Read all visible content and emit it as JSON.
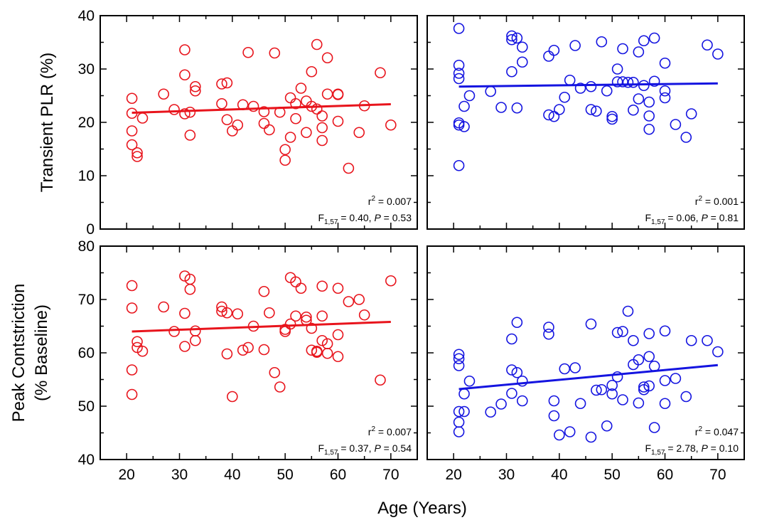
{
  "figure": {
    "xlabel": "Age (Years)",
    "ylabel_top": "Transient PLR (%)",
    "ylabel_bottom_line1": "Peak Contstriction",
    "ylabel_bottom_line2": "(% Baseline)"
  },
  "chart_data": [
    {
      "type": "scatter",
      "panel": "top-left",
      "color": "#e8141c",
      "xlim": [
        15,
        75
      ],
      "ylim": [
        0,
        40
      ],
      "xticks": [
        20,
        30,
        40,
        50,
        60,
        70
      ],
      "yticks": [
        0,
        10,
        20,
        30,
        40
      ],
      "points": [
        [
          21,
          24.5
        ],
        [
          21,
          21.7
        ],
        [
          21,
          18.4
        ],
        [
          21,
          15.8
        ],
        [
          22,
          14.3
        ],
        [
          22,
          13.6
        ],
        [
          23,
          20.8
        ],
        [
          27,
          25.3
        ],
        [
          29,
          22.4
        ],
        [
          31,
          33.6
        ],
        [
          31,
          28.9
        ],
        [
          31,
          21.6
        ],
        [
          32,
          21.9
        ],
        [
          32,
          17.6
        ],
        [
          33,
          25.9
        ],
        [
          33,
          26.7
        ],
        [
          38,
          27.2
        ],
        [
          38,
          23.5
        ],
        [
          39,
          27.4
        ],
        [
          39,
          20.5
        ],
        [
          40,
          18.4
        ],
        [
          41,
          19.5
        ],
        [
          42,
          23.3
        ],
        [
          43,
          33.1
        ],
        [
          44,
          23.0
        ],
        [
          46,
          22.0
        ],
        [
          46,
          19.8
        ],
        [
          47,
          18.6
        ],
        [
          48,
          33.0
        ],
        [
          49,
          21.9
        ],
        [
          50,
          14.9
        ],
        [
          50,
          12.9
        ],
        [
          51,
          24.6
        ],
        [
          51,
          17.2
        ],
        [
          52,
          23.5
        ],
        [
          52,
          20.7
        ],
        [
          53,
          26.4
        ],
        [
          54,
          24.0
        ],
        [
          54,
          18.1
        ],
        [
          55,
          29.5
        ],
        [
          55,
          23.0
        ],
        [
          56,
          34.6
        ],
        [
          56,
          22.5
        ],
        [
          57,
          21.2
        ],
        [
          57,
          19.0
        ],
        [
          57,
          16.6
        ],
        [
          58,
          32.1
        ],
        [
          58,
          25.3
        ],
        [
          60,
          25.2
        ],
        [
          60,
          25.3
        ],
        [
          60,
          20.2
        ],
        [
          62,
          11.4
        ],
        [
          64,
          18.1
        ],
        [
          65,
          23.1
        ],
        [
          68,
          29.3
        ],
        [
          70,
          19.5
        ]
      ],
      "fit": {
        "x": [
          21,
          70
        ],
        "y": [
          21.8,
          23.4
        ]
      },
      "annotation": {
        "r2": "= 0.007",
        "f_stat": "= 0.40, ",
        "p_value": " = 0.53"
      }
    },
    {
      "type": "scatter",
      "panel": "top-right",
      "color": "#1414e0",
      "xlim": [
        15,
        75
      ],
      "ylim": [
        0,
        40
      ],
      "xticks": [
        20,
        30,
        40,
        50,
        60,
        70
      ],
      "yticks": [
        0,
        10,
        20,
        30,
        40
      ],
      "points": [
        [
          21,
          37.6
        ],
        [
          21,
          30.7
        ],
        [
          21,
          29.2
        ],
        [
          21,
          28.2
        ],
        [
          21,
          19.9
        ],
        [
          21,
          19.5
        ],
        [
          21,
          11.9
        ],
        [
          22,
          23.0
        ],
        [
          22,
          19.2
        ],
        [
          23,
          25.0
        ],
        [
          27,
          25.8
        ],
        [
          29,
          22.8
        ],
        [
          31,
          36.2
        ],
        [
          31,
          35.5
        ],
        [
          31,
          29.5
        ],
        [
          32,
          35.8
        ],
        [
          32,
          22.7
        ],
        [
          33,
          34.1
        ],
        [
          33,
          31.3
        ],
        [
          38,
          32.4
        ],
        [
          38,
          21.4
        ],
        [
          39,
          33.5
        ],
        [
          39,
          21.1
        ],
        [
          40,
          22.4
        ],
        [
          41,
          24.7
        ],
        [
          42,
          27.9
        ],
        [
          43,
          34.4
        ],
        [
          44,
          26.4
        ],
        [
          46,
          26.7
        ],
        [
          46,
          22.4
        ],
        [
          47,
          22.1
        ],
        [
          48,
          35.1
        ],
        [
          49,
          25.9
        ],
        [
          50,
          21.1
        ],
        [
          50,
          20.6
        ],
        [
          51,
          30.0
        ],
        [
          51,
          27.6
        ],
        [
          52,
          27.6
        ],
        [
          52,
          33.8
        ],
        [
          53,
          27.5
        ],
        [
          54,
          27.5
        ],
        [
          54,
          22.3
        ],
        [
          55,
          33.2
        ],
        [
          55,
          24.4
        ],
        [
          56,
          35.3
        ],
        [
          56,
          26.9
        ],
        [
          57,
          23.8
        ],
        [
          57,
          21.2
        ],
        [
          57,
          18.7
        ],
        [
          58,
          35.8
        ],
        [
          58,
          27.7
        ],
        [
          60,
          31.1
        ],
        [
          60,
          25.9
        ],
        [
          60,
          24.6
        ],
        [
          62,
          19.6
        ],
        [
          64,
          17.2
        ],
        [
          65,
          21.6
        ],
        [
          68,
          34.5
        ],
        [
          70,
          32.8
        ]
      ],
      "fit": {
        "x": [
          21,
          70
        ],
        "y": [
          26.7,
          27.3
        ]
      },
      "annotation": {
        "r2": "= 0.001",
        "f_stat": "= 0.06, ",
        "p_value": " = 0.81"
      }
    },
    {
      "type": "scatter",
      "panel": "bottom-left",
      "color": "#e8141c",
      "xlim": [
        15,
        75
      ],
      "ylim": [
        40,
        80
      ],
      "xticks": [
        20,
        30,
        40,
        50,
        60,
        70
      ],
      "yticks": [
        40,
        50,
        60,
        70,
        80
      ],
      "points": [
        [
          21,
          72.6
        ],
        [
          21,
          68.4
        ],
        [
          21,
          56.8
        ],
        [
          21,
          52.2
        ],
        [
          22,
          62.1
        ],
        [
          22,
          61.0
        ],
        [
          23,
          60.3
        ],
        [
          27,
          68.6
        ],
        [
          29,
          64.0
        ],
        [
          31,
          74.4
        ],
        [
          31,
          67.4
        ],
        [
          31,
          61.2
        ],
        [
          32,
          73.8
        ],
        [
          32,
          71.9
        ],
        [
          33,
          64.1
        ],
        [
          33,
          62.3
        ],
        [
          38,
          68.6
        ],
        [
          38,
          67.8
        ],
        [
          39,
          67.5
        ],
        [
          39,
          59.8
        ],
        [
          40,
          51.8
        ],
        [
          41,
          67.3
        ],
        [
          42,
          60.5
        ],
        [
          43,
          61.0
        ],
        [
          44,
          65.0
        ],
        [
          46,
          71.5
        ],
        [
          46,
          60.6
        ],
        [
          47,
          67.5
        ],
        [
          48,
          56.3
        ],
        [
          49,
          53.6
        ],
        [
          50,
          64.4
        ],
        [
          50,
          64.0
        ],
        [
          51,
          74.1
        ],
        [
          51,
          65.4
        ],
        [
          52,
          73.3
        ],
        [
          52,
          66.9
        ],
        [
          53,
          72.1
        ],
        [
          54,
          66.7
        ],
        [
          54,
          66.1
        ],
        [
          55,
          64.6
        ],
        [
          55,
          60.5
        ],
        [
          56,
          60.3
        ],
        [
          56,
          60.1
        ],
        [
          57,
          72.5
        ],
        [
          57,
          66.9
        ],
        [
          57,
          62.3
        ],
        [
          58,
          61.7
        ],
        [
          58,
          59.9
        ],
        [
          60,
          72.1
        ],
        [
          60,
          63.4
        ],
        [
          60,
          59.3
        ],
        [
          62,
          69.6
        ],
        [
          64,
          70.0
        ],
        [
          65,
          67.1
        ],
        [
          68,
          54.9
        ],
        [
          70,
          73.5
        ]
      ],
      "fit": {
        "x": [
          21,
          70
        ],
        "y": [
          64.0,
          65.8
        ]
      },
      "annotation": {
        "r2": "= 0.007",
        "f_stat": "= 0.37, ",
        "p_value": " = 0.54"
      }
    },
    {
      "type": "scatter",
      "panel": "bottom-right",
      "color": "#1414e0",
      "xlim": [
        15,
        75
      ],
      "ylim": [
        40,
        80
      ],
      "xticks": [
        20,
        30,
        40,
        50,
        60,
        70
      ],
      "yticks": [
        40,
        50,
        60,
        70,
        80
      ],
      "points": [
        [
          21,
          59.7
        ],
        [
          21,
          58.9
        ],
        [
          21,
          57.6
        ],
        [
          21,
          49.0
        ],
        [
          21,
          47.0
        ],
        [
          21,
          45.2
        ],
        [
          22,
          52.3
        ],
        [
          22,
          49.0
        ],
        [
          23,
          54.7
        ],
        [
          27,
          48.9
        ],
        [
          29,
          50.4
        ],
        [
          31,
          62.6
        ],
        [
          31,
          56.8
        ],
        [
          31,
          52.4
        ],
        [
          32,
          65.7
        ],
        [
          32,
          56.3
        ],
        [
          33,
          54.7
        ],
        [
          33,
          51.0
        ],
        [
          38,
          64.8
        ],
        [
          38,
          63.5
        ],
        [
          39,
          51.0
        ],
        [
          39,
          48.2
        ],
        [
          40,
          44.6
        ],
        [
          41,
          57.0
        ],
        [
          42,
          45.2
        ],
        [
          43,
          57.2
        ],
        [
          44,
          50.5
        ],
        [
          46,
          65.4
        ],
        [
          46,
          44.2
        ],
        [
          47,
          53.0
        ],
        [
          48,
          53.1
        ],
        [
          49,
          46.3
        ],
        [
          50,
          53.9
        ],
        [
          50,
          52.3
        ],
        [
          51,
          63.8
        ],
        [
          51,
          55.5
        ],
        [
          52,
          64.0
        ],
        [
          52,
          51.2
        ],
        [
          53,
          67.8
        ],
        [
          54,
          62.3
        ],
        [
          54,
          57.8
        ],
        [
          55,
          58.7
        ],
        [
          55,
          50.6
        ],
        [
          56,
          53.1
        ],
        [
          56,
          53.6
        ],
        [
          57,
          63.6
        ],
        [
          57,
          59.3
        ],
        [
          57,
          53.8
        ],
        [
          58,
          57.5
        ],
        [
          58,
          46.0
        ],
        [
          60,
          64.1
        ],
        [
          60,
          54.8
        ],
        [
          60,
          50.5
        ],
        [
          62,
          55.2
        ],
        [
          64,
          51.8
        ],
        [
          65,
          62.3
        ],
        [
          68,
          62.3
        ],
        [
          70,
          60.2
        ]
      ],
      "fit": {
        "x": [
          21,
          70
        ],
        "y": [
          53.2,
          57.7
        ]
      },
      "annotation": {
        "r2": "= 0.047",
        "f_stat": "= 2.78, ",
        "p_value": " = 0.10"
      }
    }
  ]
}
